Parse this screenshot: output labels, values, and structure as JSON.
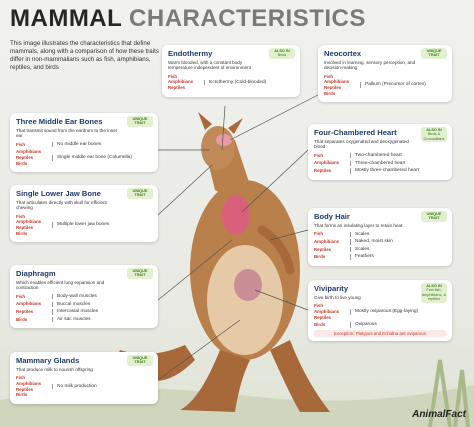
{
  "header": {
    "title_dark": "MAMMAL",
    "title_light": "CHARACTERISTICS",
    "intro": "This image illustrates the characteristics that define mammals, along with a comparison of how these traits differ in non-mammalians such as fish, amphibians, reptiles, and birds"
  },
  "cards": [
    {
      "title": "Endothermy",
      "description": "Warm blooded, with a constant body temperature independent of environment",
      "tag": {
        "label": "ALSO IN",
        "detail": "Birds"
      },
      "groups": [
        {
          "animals": [
            "Fish",
            "Amphibians",
            "Reptiles"
          ],
          "result": "Ectothermy (Cold-blooded)"
        }
      ]
    },
    {
      "title": "Neocortex",
      "description": "Involved in learning, sensory perception, and decision-making",
      "tag": {
        "label": "UNIQUE TRAIT"
      },
      "groups": [
        {
          "animals": [
            "Fish",
            "Amphibians",
            "Reptiles",
            "Birds"
          ],
          "result": "Pallium (Precursor of cortex)"
        }
      ]
    },
    {
      "title": "Three Middle Ear Bones",
      "description": "That transmit sound from the eardrum to the inner ear",
      "tag": {
        "label": "UNIQUE TRAIT"
      },
      "groups": [
        {
          "animals": [
            "Fish"
          ],
          "result": "No middle ear bones"
        },
        {
          "animals": [
            "Amphibians",
            "Reptiles",
            "Birds"
          ],
          "result": "Single middle ear bone (Columella)"
        }
      ]
    },
    {
      "title": "Four-Chambered Heart",
      "description": "That separates oxygenated and deoxygenated blood",
      "tag": {
        "label": "ALSO IN",
        "detail": "Birds & Crocodilians"
      },
      "groups": [
        {
          "animals": [
            "Fish"
          ],
          "result": "Two-chambered heart"
        },
        {
          "animals": [
            "Amphibians"
          ],
          "result": "Three-chambered heart"
        },
        {
          "animals": [
            "Reptiles"
          ],
          "result": "Mostly three-chambered heart"
        }
      ]
    },
    {
      "title": "Single Lower Jaw Bone",
      "description": "That articulates directly with skull for efficient chewing",
      "tag": {
        "label": "UNIQUE TRAIT"
      },
      "groups": [
        {
          "animals": [
            "Fish",
            "Amphibians",
            "Reptiles",
            "Birds"
          ],
          "result": "Multiple lower jaw bones"
        }
      ]
    },
    {
      "title": "Body Hair",
      "description": "That forms an insulating layer to retain heat",
      "tag": {
        "label": "UNIQUE TRAIT"
      },
      "groups": [
        {
          "animals": [
            "Fish"
          ],
          "result": "Scales"
        },
        {
          "animals": [
            "Amphibians"
          ],
          "result": "Naked, moist skin"
        },
        {
          "animals": [
            "Reptiles"
          ],
          "result": "Scales"
        },
        {
          "animals": [
            "Birds"
          ],
          "result": "Feathers"
        }
      ]
    },
    {
      "title": "Diaphragm",
      "description": "Which enables efficient lung expansion and contraction",
      "tag": {
        "label": "UNIQUE TRAIT"
      },
      "groups": [
        {
          "animals": [
            "Fish"
          ],
          "result": "Body-wall muscles"
        },
        {
          "animals": [
            "Amphibians"
          ],
          "result": "Buccal muscles"
        },
        {
          "animals": [
            "Reptiles"
          ],
          "result": "Intercostal muscles"
        },
        {
          "animals": [
            "Birds"
          ],
          "result": "Air sac muscles"
        }
      ]
    },
    {
      "title": "Viviparity",
      "description": "Give birth to live young",
      "tag": {
        "label": "ALSO IN",
        "detail": "Few fish, amphibians, & reptiles"
      },
      "groups": [
        {
          "animals": [
            "Fish",
            "Amphibians",
            "Reptiles"
          ],
          "result": "Mostly oviparous (Egg-laying)"
        },
        {
          "animals": [
            "Birds"
          ],
          "result": "Oviparous"
        }
      ],
      "exception": "Exception: Platypus and Echidna are oviparous"
    },
    {
      "title": "Mammary Glands",
      "description": "That produce milk to nourish offspring",
      "tag": {
        "label": "UNIQUE TRAIT"
      },
      "groups": [
        {
          "animals": [
            "Fish",
            "Amphibians",
            "Reptiles",
            "Birds"
          ],
          "result": "No milk production"
        }
      ]
    }
  ],
  "footer": {
    "logo": "AnimalFact"
  }
}
